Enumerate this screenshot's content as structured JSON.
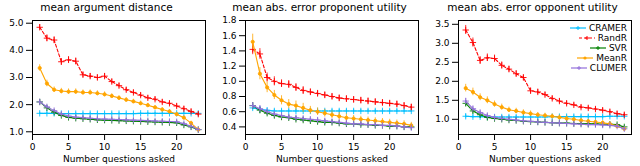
{
  "chart_data": [
    {
      "type": "line",
      "title": "mean argument distance",
      "xlabel": "Number questions asked",
      "x": [
        1,
        2,
        3,
        4,
        5,
        6,
        7,
        8,
        9,
        10,
        11,
        12,
        13,
        14,
        15,
        16,
        17,
        18,
        19,
        20,
        21,
        22,
        23
      ],
      "xlim": [
        0,
        24
      ],
      "xticks": [
        0,
        5,
        10,
        15,
        20
      ],
      "ylim": [
        0.9,
        5.1
      ],
      "yticks": [
        1,
        2,
        3,
        4,
        5
      ],
      "grid": false,
      "series": [
        {
          "name": "CRAMER",
          "color": "#00BFFF",
          "marker": "plus",
          "line_style": "solid",
          "values": [
            1.68,
            1.68,
            1.68,
            1.67,
            1.67,
            1.67,
            1.67,
            1.67,
            1.67,
            1.67,
            1.67,
            1.67,
            1.67,
            1.67,
            1.68,
            1.68,
            1.68,
            1.68,
            1.68,
            1.68,
            1.68,
            1.68,
            1.68
          ],
          "errors": [
            0.04,
            0.04,
            0.03,
            0.03,
            0.03,
            0.03,
            0.03,
            0.03,
            0.03,
            0.03,
            0.03,
            0.03,
            0.03,
            0.03,
            0.03,
            0.03,
            0.03,
            0.03,
            0.03,
            0.03,
            0.03,
            0.03,
            0.03
          ]
        },
        {
          "name": "RandR",
          "color": "#FF0000",
          "marker": "plus",
          "line_style": "dashed",
          "values": [
            4.85,
            4.45,
            4.38,
            3.58,
            3.65,
            3.6,
            3.1,
            3.05,
            3.0,
            3.05,
            2.85,
            2.7,
            2.55,
            2.45,
            2.35,
            2.25,
            2.2,
            2.1,
            2.05,
            1.95,
            1.85,
            1.75,
            1.65
          ],
          "errors": [
            0.1,
            0.12,
            0.12,
            0.12,
            0.12,
            0.12,
            0.1,
            0.1,
            0.1,
            0.1,
            0.09,
            0.09,
            0.08,
            0.08,
            0.08,
            0.08,
            0.08,
            0.08,
            0.08,
            0.08,
            0.08,
            0.08,
            0.08
          ]
        },
        {
          "name": "SVR",
          "color": "#008000",
          "marker": "plus",
          "line_style": "solid",
          "values": [
            2.1,
            1.88,
            1.72,
            1.6,
            1.53,
            1.5,
            1.48,
            1.46,
            1.44,
            1.43,
            1.42,
            1.41,
            1.4,
            1.39,
            1.38,
            1.37,
            1.36,
            1.35,
            1.34,
            1.33,
            1.25,
            1.18,
            1.08
          ],
          "errors": [
            0.08,
            0.07,
            0.06,
            0.05,
            0.05,
            0.05,
            0.04,
            0.04,
            0.04,
            0.04,
            0.04,
            0.04,
            0.03,
            0.03,
            0.03,
            0.03,
            0.03,
            0.03,
            0.03,
            0.03,
            0.03,
            0.03,
            0.03
          ]
        },
        {
          "name": "MeanR",
          "color": "#FFA500",
          "marker": "circle",
          "line_style": "solid",
          "values": [
            3.35,
            2.78,
            2.55,
            2.5,
            2.48,
            2.48,
            2.45,
            2.45,
            2.42,
            2.38,
            2.32,
            2.25,
            2.18,
            2.12,
            2.05,
            1.98,
            1.9,
            1.82,
            1.75,
            1.65,
            1.52,
            1.32,
            1.08
          ],
          "errors": [
            0.12,
            0.12,
            0.1,
            0.1,
            0.1,
            0.1,
            0.09,
            0.09,
            0.09,
            0.09,
            0.08,
            0.08,
            0.08,
            0.08,
            0.08,
            0.07,
            0.07,
            0.07,
            0.07,
            0.07,
            0.07,
            0.07,
            0.07
          ]
        },
        {
          "name": "CLUMER",
          "color": "#9370DB",
          "marker": "plus",
          "line_style": "solid",
          "values": [
            2.1,
            1.92,
            1.78,
            1.65,
            1.58,
            1.54,
            1.52,
            1.5,
            1.48,
            1.47,
            1.46,
            1.45,
            1.44,
            1.43,
            1.42,
            1.41,
            1.4,
            1.39,
            1.38,
            1.37,
            1.3,
            1.2,
            1.08
          ],
          "errors": [
            0.07,
            0.06,
            0.05,
            0.05,
            0.04,
            0.04,
            0.04,
            0.04,
            0.04,
            0.04,
            0.04,
            0.04,
            0.03,
            0.03,
            0.03,
            0.03,
            0.03,
            0.03,
            0.03,
            0.03,
            0.03,
            0.03,
            0.03
          ]
        }
      ]
    },
    {
      "type": "line",
      "title": "mean abs. error proponent utility",
      "xlabel": "Number questions asked",
      "x": [
        1,
        2,
        3,
        4,
        5,
        6,
        7,
        8,
        9,
        10,
        11,
        12,
        13,
        14,
        15,
        16,
        17,
        18,
        19,
        20,
        21,
        22,
        23
      ],
      "xlim": [
        0,
        24
      ],
      "xticks": [
        0,
        5,
        10,
        15,
        20
      ],
      "ylim": [
        0.3,
        1.8
      ],
      "yticks": [
        0.4,
        0.6,
        0.8,
        1,
        1.2,
        1.4,
        1.6,
        1.8
      ],
      "grid": false,
      "series": [
        {
          "name": "CRAMER",
          "color": "#00BFFF",
          "marker": "plus",
          "line_style": "solid",
          "values": [
            0.65,
            0.63,
            0.62,
            0.61,
            0.61,
            0.61,
            0.61,
            0.61,
            0.61,
            0.61,
            0.61,
            0.61,
            0.61,
            0.61,
            0.61,
            0.61,
            0.61,
            0.61,
            0.61,
            0.61,
            0.61,
            0.61,
            0.61
          ],
          "errors": [
            0.03,
            0.03,
            0.02,
            0.02,
            0.02,
            0.02,
            0.02,
            0.02,
            0.02,
            0.02,
            0.02,
            0.02,
            0.02,
            0.02,
            0.02,
            0.02,
            0.02,
            0.02,
            0.02,
            0.02,
            0.02,
            0.02,
            0.02
          ]
        },
        {
          "name": "RandR",
          "color": "#FF0000",
          "marker": "plus",
          "line_style": "dashed",
          "values": [
            1.42,
            1.36,
            1.05,
            1.0,
            0.97,
            0.96,
            0.92,
            0.88,
            0.86,
            0.84,
            0.82,
            0.8,
            0.78,
            0.77,
            0.76,
            0.75,
            0.74,
            0.73,
            0.72,
            0.71,
            0.7,
            0.68,
            0.66
          ],
          "errors": [
            0.07,
            0.07,
            0.06,
            0.06,
            0.05,
            0.05,
            0.05,
            0.05,
            0.04,
            0.04,
            0.04,
            0.04,
            0.04,
            0.04,
            0.04,
            0.04,
            0.04,
            0.04,
            0.04,
            0.04,
            0.04,
            0.04,
            0.04
          ]
        },
        {
          "name": "SVR",
          "color": "#008000",
          "marker": "plus",
          "line_style": "solid",
          "values": [
            0.68,
            0.62,
            0.58,
            0.55,
            0.53,
            0.52,
            0.5,
            0.49,
            0.48,
            0.47,
            0.46,
            0.46,
            0.45,
            0.44,
            0.44,
            0.43,
            0.43,
            0.42,
            0.42,
            0.41,
            0.41,
            0.4,
            0.4
          ],
          "errors": [
            0.04,
            0.04,
            0.03,
            0.03,
            0.03,
            0.03,
            0.03,
            0.03,
            0.03,
            0.03,
            0.03,
            0.02,
            0.02,
            0.02,
            0.02,
            0.02,
            0.02,
            0.02,
            0.02,
            0.02,
            0.02,
            0.02,
            0.02
          ]
        },
        {
          "name": "MeanR",
          "color": "#FFA500",
          "marker": "circle",
          "line_style": "solid",
          "values": [
            1.52,
            1.1,
            0.92,
            0.82,
            0.75,
            0.7,
            0.68,
            0.65,
            0.62,
            0.6,
            0.58,
            0.56,
            0.54,
            0.52,
            0.51,
            0.5,
            0.49,
            0.48,
            0.47,
            0.46,
            0.45,
            0.44,
            0.42
          ],
          "errors": [
            0.1,
            0.08,
            0.07,
            0.06,
            0.06,
            0.06,
            0.06,
            0.06,
            0.05,
            0.05,
            0.05,
            0.05,
            0.05,
            0.05,
            0.04,
            0.04,
            0.04,
            0.04,
            0.04,
            0.04,
            0.04,
            0.04,
            0.04
          ]
        },
        {
          "name": "CLUMER",
          "color": "#9370DB",
          "marker": "plus",
          "line_style": "solid",
          "values": [
            0.68,
            0.64,
            0.6,
            0.57,
            0.55,
            0.53,
            0.52,
            0.51,
            0.5,
            0.49,
            0.48,
            0.47,
            0.46,
            0.45,
            0.44,
            0.44,
            0.43,
            0.43,
            0.42,
            0.42,
            0.41,
            0.4,
            0.39
          ],
          "errors": [
            0.04,
            0.04,
            0.03,
            0.03,
            0.03,
            0.03,
            0.03,
            0.03,
            0.03,
            0.03,
            0.03,
            0.02,
            0.02,
            0.02,
            0.02,
            0.02,
            0.02,
            0.02,
            0.02,
            0.02,
            0.02,
            0.02,
            0.02
          ]
        }
      ]
    },
    {
      "type": "line",
      "title": "mean abs. error opponent utility",
      "xlabel": "Number questions asked",
      "x": [
        1,
        2,
        3,
        4,
        5,
        6,
        7,
        8,
        9,
        10,
        11,
        12,
        13,
        14,
        15,
        16,
        17,
        18,
        19,
        20,
        21,
        22,
        23
      ],
      "xlim": [
        0,
        24
      ],
      "xticks": [
        0,
        5,
        10,
        15,
        20
      ],
      "ylim": [
        0.6,
        3.6
      ],
      "yticks": [
        1,
        1.5,
        2,
        2.5,
        3,
        3.5
      ],
      "grid": false,
      "legend": "upper right",
      "series": [
        {
          "name": "CRAMER",
          "color": "#00BFFF",
          "marker": "plus",
          "line_style": "solid",
          "values": [
            1.08,
            1.07,
            1.07,
            1.06,
            1.06,
            1.06,
            1.06,
            1.06,
            1.06,
            1.06,
            1.06,
            1.06,
            1.07,
            1.07,
            1.07,
            1.07,
            1.07,
            1.07,
            1.07,
            1.07,
            1.08,
            1.08,
            1.08
          ],
          "errors": [
            0.05,
            0.04,
            0.04,
            0.04,
            0.04,
            0.04,
            0.04,
            0.04,
            0.04,
            0.04,
            0.04,
            0.04,
            0.04,
            0.04,
            0.04,
            0.04,
            0.04,
            0.04,
            0.04,
            0.04,
            0.04,
            0.04,
            0.04
          ]
        },
        {
          "name": "RandR",
          "color": "#FF0000",
          "marker": "plus",
          "line_style": "dashed",
          "values": [
            3.35,
            3.02,
            2.55,
            2.62,
            2.6,
            2.42,
            2.32,
            2.2,
            2.1,
            1.75,
            1.72,
            1.65,
            1.55,
            1.48,
            1.42,
            1.38,
            1.32,
            1.3,
            1.27,
            1.24,
            1.2,
            1.15,
            1.12
          ],
          "errors": [
            0.12,
            0.12,
            0.1,
            0.1,
            0.09,
            0.09,
            0.08,
            0.08,
            0.07,
            0.07,
            0.07,
            0.06,
            0.06,
            0.06,
            0.06,
            0.05,
            0.05,
            0.05,
            0.05,
            0.05,
            0.05,
            0.05,
            0.05
          ]
        },
        {
          "name": "SVR",
          "color": "#008000",
          "marker": "plus",
          "line_style": "solid",
          "values": [
            1.42,
            1.22,
            1.12,
            1.05,
            1.02,
            1.0,
            0.98,
            0.97,
            0.95,
            0.94,
            0.93,
            0.92,
            0.91,
            0.9,
            0.9,
            0.89,
            0.89,
            0.88,
            0.88,
            0.87,
            0.87,
            0.86,
            0.8
          ],
          "errors": [
            0.07,
            0.06,
            0.05,
            0.05,
            0.05,
            0.04,
            0.04,
            0.04,
            0.04,
            0.04,
            0.03,
            0.03,
            0.03,
            0.03,
            0.03,
            0.03,
            0.03,
            0.03,
            0.03,
            0.03,
            0.03,
            0.03,
            0.03
          ]
        },
        {
          "name": "MeanR",
          "color": "#FFA500",
          "marker": "circle",
          "line_style": "solid",
          "values": [
            1.82,
            1.72,
            1.58,
            1.5,
            1.4,
            1.32,
            1.25,
            1.22,
            1.18,
            1.15,
            1.12,
            1.1,
            1.08,
            1.05,
            1.02,
            1.0,
            0.97,
            0.95,
            0.93,
            0.91,
            0.88,
            0.82,
            0.75
          ],
          "errors": [
            0.1,
            0.1,
            0.09,
            0.09,
            0.08,
            0.08,
            0.07,
            0.07,
            0.07,
            0.07,
            0.06,
            0.06,
            0.06,
            0.06,
            0.06,
            0.05,
            0.05,
            0.05,
            0.05,
            0.05,
            0.05,
            0.05,
            0.04
          ]
        },
        {
          "name": "CLUMER",
          "color": "#9370DB",
          "marker": "plus",
          "line_style": "solid",
          "values": [
            1.48,
            1.28,
            1.18,
            1.1,
            1.05,
            1.02,
            1.0,
            0.98,
            0.96,
            0.95,
            0.93,
            0.92,
            0.91,
            0.9,
            0.89,
            0.88,
            0.87,
            0.86,
            0.86,
            0.85,
            0.84,
            0.82,
            0.75
          ],
          "errors": [
            0.07,
            0.06,
            0.05,
            0.05,
            0.05,
            0.04,
            0.04,
            0.04,
            0.04,
            0.04,
            0.03,
            0.03,
            0.03,
            0.03,
            0.03,
            0.03,
            0.03,
            0.03,
            0.03,
            0.03,
            0.03,
            0.03,
            0.03
          ]
        }
      ]
    }
  ]
}
